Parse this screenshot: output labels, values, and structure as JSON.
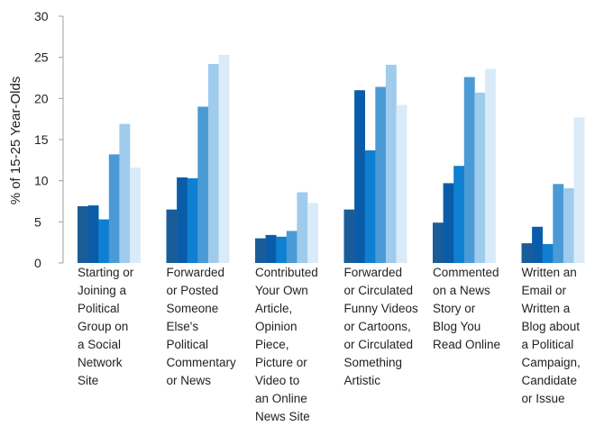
{
  "chart_data": {
    "type": "bar",
    "ylabel": "% of 15-25 Year-Olds",
    "ylim": [
      0,
      30
    ],
    "yticks": [
      0,
      5,
      10,
      15,
      20,
      25,
      30
    ],
    "grid": false,
    "categories": [
      "Starting or\nJoining a\nPolitical\nGroup on\na Social\nNetwork\nSite",
      "Forwarded\nor Posted\nSomeone\nElse's\nPolitical\nCommentary\nor News",
      "Contributed\nYour Own\nArticle,\nOpinion\nPiece,\nPicture or\nVideo to\nan Online\nNews Site",
      "Forwarded\nor Circulated\nFunny Videos\nor Cartoons,\nor Circulated\nSomething\nArtistic",
      "Commented\non a News\nStory or\nBlog You\nRead Online",
      "Written an\nEmail or\nWritten a\nBlog about\na Political\nCampaign,\nCandidate\nor Issue"
    ],
    "series": [
      {
        "color": "#1a5c98",
        "values": [
          6.9,
          6.5,
          3.0,
          6.5,
          4.9,
          2.4
        ]
      },
      {
        "color": "#0b5ca8",
        "values": [
          7.0,
          10.4,
          3.4,
          21.0,
          9.7,
          4.4
        ]
      },
      {
        "color": "#0f7fd1",
        "values": [
          5.3,
          10.3,
          3.2,
          13.7,
          11.8,
          2.3
        ]
      },
      {
        "color": "#4a9ad6",
        "values": [
          13.2,
          19.0,
          3.9,
          21.4,
          22.6,
          9.6
        ]
      },
      {
        "color": "#9fcbed",
        "values": [
          16.9,
          24.2,
          8.6,
          24.1,
          20.7,
          9.1
        ]
      },
      {
        "color": "#d9ebf9",
        "values": [
          11.6,
          25.3,
          7.3,
          19.2,
          23.6,
          17.7
        ]
      }
    ]
  }
}
